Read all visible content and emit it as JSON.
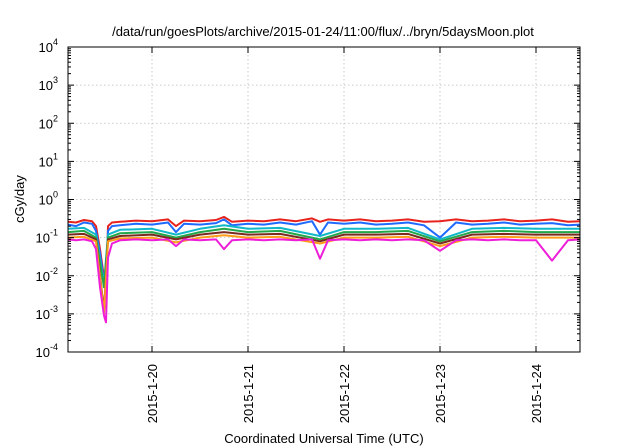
{
  "chart_data": {
    "type": "line",
    "title": "/data/run/goesPlots/archive/2015-01-24/11:00/flux/../bryn/5daysMoon.plot",
    "xlabel": "Coordinated Universal Time (UTC)",
    "ylabel": "cGy/day",
    "yscale": "log",
    "ylim": [
      0.0001,
      10000
    ],
    "xlim": [
      "2015-01-19 03:00",
      "2015-01-24 11:00"
    ],
    "grid": true,
    "legend": "none",
    "y_ticks": [
      {
        "value": 0.0001,
        "base": "10",
        "exp": "-4"
      },
      {
        "value": 0.001,
        "base": "10",
        "exp": "-3"
      },
      {
        "value": 0.01,
        "base": "10",
        "exp": "-2"
      },
      {
        "value": 0.1,
        "base": "10",
        "exp": "-1"
      },
      {
        "value": 1,
        "base": "10",
        "exp": "0"
      },
      {
        "value": 10,
        "base": "10",
        "exp": "1"
      },
      {
        "value": 100,
        "base": "10",
        "exp": "2"
      },
      {
        "value": 1000,
        "base": "10",
        "exp": "3"
      },
      {
        "value": 10000,
        "base": "10",
        "exp": "4"
      }
    ],
    "x_ticks": [
      {
        "value": "2015-01-20 00:00",
        "label": "2015-1-20"
      },
      {
        "value": "2015-01-21 00:00",
        "label": "2015-1-21"
      },
      {
        "value": "2015-01-22 00:00",
        "label": "2015-1-22"
      },
      {
        "value": "2015-01-23 00:00",
        "label": "2015-1-23"
      },
      {
        "value": "2015-01-24 00:00",
        "label": "2015-1-24"
      }
    ],
    "series": [
      {
        "color": "#e8221c",
        "points": [
          [
            "2015-01-19 03:00",
            0.26
          ],
          [
            "2015-01-19 05:00",
            0.25
          ],
          [
            "2015-01-19 07:00",
            0.29
          ],
          [
            "2015-01-19 09:00",
            0.27
          ],
          [
            "2015-01-19 10:00",
            0.2
          ],
          [
            "2015-01-19 11:00",
            0.05
          ],
          [
            "2015-01-19 12:00",
            0.009
          ],
          [
            "2015-01-19 12:30",
            0.005
          ],
          [
            "2015-01-19 13:00",
            0.2
          ],
          [
            "2015-01-19 14:00",
            0.25
          ],
          [
            "2015-01-19 16:00",
            0.26
          ],
          [
            "2015-01-19 20:00",
            0.28
          ],
          [
            "2015-01-20 00:00",
            0.27
          ],
          [
            "2015-01-20 04:00",
            0.3
          ],
          [
            "2015-01-20 06:00",
            0.2
          ],
          [
            "2015-01-20 08:00",
            0.28
          ],
          [
            "2015-01-20 12:00",
            0.27
          ],
          [
            "2015-01-20 16:00",
            0.29
          ],
          [
            "2015-01-20 18:00",
            0.35
          ],
          [
            "2015-01-20 20:00",
            0.26
          ],
          [
            "2015-01-21 00:00",
            0.28
          ],
          [
            "2015-01-21 04:00",
            0.27
          ],
          [
            "2015-01-21 08:00",
            0.3
          ],
          [
            "2015-01-21 12:00",
            0.27
          ],
          [
            "2015-01-21 16:00",
            0.32
          ],
          [
            "2015-01-21 18:00",
            0.26
          ],
          [
            "2015-01-21 20:00",
            0.3
          ],
          [
            "2015-01-22 00:00",
            0.28
          ],
          [
            "2015-01-22 04:00",
            0.3
          ],
          [
            "2015-01-22 08:00",
            0.27
          ],
          [
            "2015-01-22 12:00",
            0.28
          ],
          [
            "2015-01-22 16:00",
            0.3
          ],
          [
            "2015-01-22 20:00",
            0.26
          ],
          [
            "2015-01-23 00:00",
            0.27
          ],
          [
            "2015-01-23 04:00",
            0.3
          ],
          [
            "2015-01-23 08:00",
            0.27
          ],
          [
            "2015-01-23 12:00",
            0.28
          ],
          [
            "2015-01-23 16:00",
            0.3
          ],
          [
            "2015-01-23 20:00",
            0.27
          ],
          [
            "2015-01-24 00:00",
            0.28
          ],
          [
            "2015-01-24 04:00",
            0.3
          ],
          [
            "2015-01-24 08:00",
            0.26
          ],
          [
            "2015-01-24 11:00",
            0.27
          ]
        ]
      },
      {
        "color": "#1f6bff",
        "points": [
          [
            "2015-01-19 03:00",
            0.22
          ],
          [
            "2015-01-19 05:00",
            0.2
          ],
          [
            "2015-01-19 07:00",
            0.25
          ],
          [
            "2015-01-19 09:00",
            0.23
          ],
          [
            "2015-01-19 10:00",
            0.15
          ],
          [
            "2015-01-19 11:00",
            0.04
          ],
          [
            "2015-01-19 12:00",
            0.007
          ],
          [
            "2015-01-19 12:30",
            0.004
          ],
          [
            "2015-01-19 13:00",
            0.15
          ],
          [
            "2015-01-19 14:00",
            0.2
          ],
          [
            "2015-01-19 16:00",
            0.21
          ],
          [
            "2015-01-19 20:00",
            0.23
          ],
          [
            "2015-01-20 00:00",
            0.22
          ],
          [
            "2015-01-20 04:00",
            0.25
          ],
          [
            "2015-01-20 06:00",
            0.14
          ],
          [
            "2015-01-20 08:00",
            0.23
          ],
          [
            "2015-01-20 12:00",
            0.22
          ],
          [
            "2015-01-20 16:00",
            0.24
          ],
          [
            "2015-01-20 18:00",
            0.3
          ],
          [
            "2015-01-20 20:00",
            0.21
          ],
          [
            "2015-01-21 00:00",
            0.23
          ],
          [
            "2015-01-21 04:00",
            0.22
          ],
          [
            "2015-01-21 08:00",
            0.25
          ],
          [
            "2015-01-21 12:00",
            0.22
          ],
          [
            "2015-01-21 16:00",
            0.27
          ],
          [
            "2015-01-21 18:00",
            0.12
          ],
          [
            "2015-01-21 20:00",
            0.25
          ],
          [
            "2015-01-22 00:00",
            0.23
          ],
          [
            "2015-01-22 04:00",
            0.25
          ],
          [
            "2015-01-22 08:00",
            0.22
          ],
          [
            "2015-01-22 12:00",
            0.23
          ],
          [
            "2015-01-22 16:00",
            0.25
          ],
          [
            "2015-01-22 20:00",
            0.21
          ],
          [
            "2015-01-23 00:00",
            0.1
          ],
          [
            "2015-01-23 04:00",
            0.25
          ],
          [
            "2015-01-23 08:00",
            0.22
          ],
          [
            "2015-01-23 12:00",
            0.23
          ],
          [
            "2015-01-23 16:00",
            0.25
          ],
          [
            "2015-01-23 20:00",
            0.22
          ],
          [
            "2015-01-24 00:00",
            0.23
          ],
          [
            "2015-01-24 04:00",
            0.24
          ],
          [
            "2015-01-24 08:00",
            0.21
          ],
          [
            "2015-01-24 11:00",
            0.22
          ]
        ]
      },
      {
        "color": "#10b8c8",
        "points": [
          [
            "2015-01-19 03:00",
            0.17
          ],
          [
            "2015-01-19 07:00",
            0.18
          ],
          [
            "2015-01-19 10:00",
            0.12
          ],
          [
            "2015-01-19 12:00",
            0.006
          ],
          [
            "2015-01-19 13:00",
            0.12
          ],
          [
            "2015-01-19 16:00",
            0.16
          ],
          [
            "2015-01-20 00:00",
            0.17
          ],
          [
            "2015-01-20 06:00",
            0.12
          ],
          [
            "2015-01-20 12:00",
            0.17
          ],
          [
            "2015-01-20 18:00",
            0.21
          ],
          [
            "2015-01-21 00:00",
            0.17
          ],
          [
            "2015-01-21 08:00",
            0.18
          ],
          [
            "2015-01-21 18:00",
            0.11
          ],
          [
            "2015-01-22 00:00",
            0.17
          ],
          [
            "2015-01-22 08:00",
            0.17
          ],
          [
            "2015-01-22 16:00",
            0.18
          ],
          [
            "2015-01-23 00:00",
            0.09
          ],
          [
            "2015-01-23 08:00",
            0.17
          ],
          [
            "2015-01-23 16:00",
            0.18
          ],
          [
            "2015-01-24 00:00",
            0.17
          ],
          [
            "2015-01-24 11:00",
            0.17
          ]
        ]
      },
      {
        "color": "#22a84a",
        "points": [
          [
            "2015-01-19 03:00",
            0.14
          ],
          [
            "2015-01-19 07:00",
            0.15
          ],
          [
            "2015-01-19 10:00",
            0.1
          ],
          [
            "2015-01-19 12:00",
            0.005
          ],
          [
            "2015-01-19 13:00",
            0.1
          ],
          [
            "2015-01-19 16:00",
            0.13
          ],
          [
            "2015-01-20 00:00",
            0.14
          ],
          [
            "2015-01-20 06:00",
            0.1
          ],
          [
            "2015-01-20 12:00",
            0.14
          ],
          [
            "2015-01-20 18:00",
            0.17
          ],
          [
            "2015-01-21 00:00",
            0.14
          ],
          [
            "2015-01-21 08:00",
            0.15
          ],
          [
            "2015-01-21 18:00",
            0.09
          ],
          [
            "2015-01-22 00:00",
            0.14
          ],
          [
            "2015-01-22 08:00",
            0.14
          ],
          [
            "2015-01-22 16:00",
            0.15
          ],
          [
            "2015-01-23 00:00",
            0.08
          ],
          [
            "2015-01-23 08:00",
            0.14
          ],
          [
            "2015-01-23 16:00",
            0.15
          ],
          [
            "2015-01-24 00:00",
            0.14
          ],
          [
            "2015-01-24 11:00",
            0.14
          ]
        ]
      },
      {
        "color": "#7a2a1e",
        "points": [
          [
            "2015-01-19 03:00",
            0.12
          ],
          [
            "2015-01-19 07:00",
            0.125
          ],
          [
            "2015-01-19 10:00",
            0.09
          ],
          [
            "2015-01-19 12:00",
            0.0012
          ],
          [
            "2015-01-19 13:00",
            0.09
          ],
          [
            "2015-01-19 16:00",
            0.11
          ],
          [
            "2015-01-20 00:00",
            0.12
          ],
          [
            "2015-01-20 06:00",
            0.09
          ],
          [
            "2015-01-20 12:00",
            0.12
          ],
          [
            "2015-01-20 18:00",
            0.14
          ],
          [
            "2015-01-21 00:00",
            0.12
          ],
          [
            "2015-01-21 08:00",
            0.125
          ],
          [
            "2015-01-21 18:00",
            0.08
          ],
          [
            "2015-01-22 00:00",
            0.12
          ],
          [
            "2015-01-22 08:00",
            0.12
          ],
          [
            "2015-01-22 16:00",
            0.125
          ],
          [
            "2015-01-23 00:00",
            0.07
          ],
          [
            "2015-01-23 08:00",
            0.12
          ],
          [
            "2015-01-23 16:00",
            0.125
          ],
          [
            "2015-01-24 00:00",
            0.12
          ],
          [
            "2015-01-24 11:00",
            0.12
          ]
        ]
      },
      {
        "color": "#ff9c1a",
        "points": [
          [
            "2015-01-19 03:00",
            0.1
          ],
          [
            "2015-01-19 07:00",
            0.105
          ],
          [
            "2015-01-19 10:00",
            0.08
          ],
          [
            "2015-01-19 12:00",
            0.001
          ],
          [
            "2015-01-19 13:00",
            0.08
          ],
          [
            "2015-01-19 16:00",
            0.095
          ],
          [
            "2015-01-20 00:00",
            0.1
          ],
          [
            "2015-01-20 06:00",
            0.075
          ],
          [
            "2015-01-20 12:00",
            0.1
          ],
          [
            "2015-01-20 18:00",
            0.115
          ],
          [
            "2015-01-21 00:00",
            0.1
          ],
          [
            "2015-01-21 08:00",
            0.105
          ],
          [
            "2015-01-21 18:00",
            0.07
          ],
          [
            "2015-01-22 00:00",
            0.1
          ],
          [
            "2015-01-22 08:00",
            0.1
          ],
          [
            "2015-01-22 16:00",
            0.105
          ],
          [
            "2015-01-23 00:00",
            0.06
          ],
          [
            "2015-01-23 08:00",
            0.1
          ],
          [
            "2015-01-23 16:00",
            0.105
          ],
          [
            "2015-01-24 00:00",
            0.1
          ],
          [
            "2015-01-24 11:00",
            0.1
          ]
        ]
      },
      {
        "color": "#ee1ed8",
        "points": [
          [
            "2015-01-19 03:00",
            0.09
          ],
          [
            "2015-01-19 05:00",
            0.085
          ],
          [
            "2015-01-19 07:00",
            0.09
          ],
          [
            "2015-01-19 09:00",
            0.08
          ],
          [
            "2015-01-19 10:00",
            0.05
          ],
          [
            "2015-01-19 11:00",
            0.005
          ],
          [
            "2015-01-19 12:00",
            0.0009
          ],
          [
            "2015-01-19 12:30",
            0.0006
          ],
          [
            "2015-01-19 13:00",
            0.03
          ],
          [
            "2015-01-19 14:00",
            0.07
          ],
          [
            "2015-01-19 16:00",
            0.085
          ],
          [
            "2015-01-19 20:00",
            0.09
          ],
          [
            "2015-01-20 00:00",
            0.085
          ],
          [
            "2015-01-20 04:00",
            0.09
          ],
          [
            "2015-01-20 06:00",
            0.06
          ],
          [
            "2015-01-20 08:00",
            0.09
          ],
          [
            "2015-01-20 12:00",
            0.085
          ],
          [
            "2015-01-20 16:00",
            0.09
          ],
          [
            "2015-01-20 18:00",
            0.05
          ],
          [
            "2015-01-20 20:00",
            0.085
          ],
          [
            "2015-01-21 00:00",
            0.09
          ],
          [
            "2015-01-21 04:00",
            0.085
          ],
          [
            "2015-01-21 08:00",
            0.09
          ],
          [
            "2015-01-21 12:00",
            0.085
          ],
          [
            "2015-01-21 16:00",
            0.09
          ],
          [
            "2015-01-21 18:00",
            0.028
          ],
          [
            "2015-01-21 20:00",
            0.085
          ],
          [
            "2015-01-22 00:00",
            0.09
          ],
          [
            "2015-01-22 04:00",
            0.085
          ],
          [
            "2015-01-22 08:00",
            0.09
          ],
          [
            "2015-01-22 12:00",
            0.085
          ],
          [
            "2015-01-22 16:00",
            0.09
          ],
          [
            "2015-01-22 20:00",
            0.085
          ],
          [
            "2015-01-23 00:00",
            0.045
          ],
          [
            "2015-01-23 04:00",
            0.085
          ],
          [
            "2015-01-23 08:00",
            0.09
          ],
          [
            "2015-01-23 12:00",
            0.085
          ],
          [
            "2015-01-23 16:00",
            0.09
          ],
          [
            "2015-01-23 20:00",
            0.085
          ],
          [
            "2015-01-24 00:00",
            0.085
          ],
          [
            "2015-01-24 04:00",
            0.025
          ],
          [
            "2015-01-24 08:00",
            0.085
          ],
          [
            "2015-01-24 11:00",
            0.09
          ]
        ]
      }
    ]
  }
}
